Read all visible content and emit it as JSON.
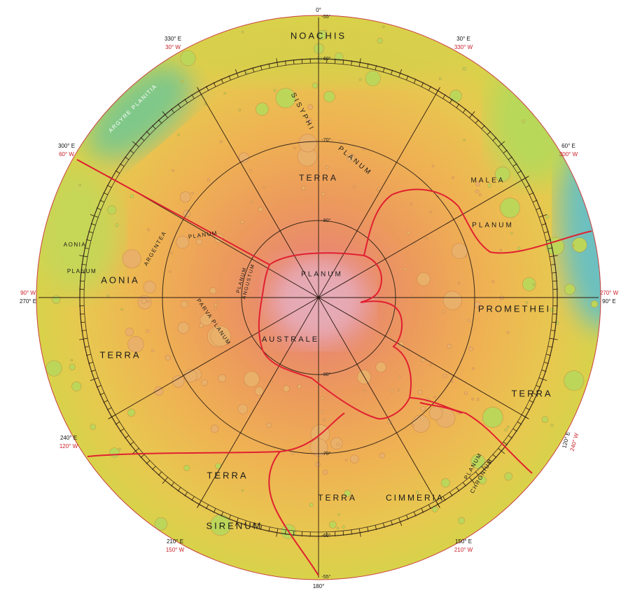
{
  "longitude_labels": [
    {
      "east": "0°"
    },
    {
      "east": "330° E",
      "west": "30° W"
    },
    {
      "east": "30° E",
      "west": "330° W"
    },
    {
      "east": "300° E",
      "west": "60° W"
    },
    {
      "east": "60° E",
      "west": "300° W"
    },
    {
      "east": "270° E",
      "west": "90° W"
    },
    {
      "east": "90° E",
      "west": "270° W"
    },
    {
      "east": "240° E",
      "west": "120° W"
    },
    {
      "east": "120° E",
      "west": "240° W"
    },
    {
      "east": "210° E",
      "west": "150° W"
    },
    {
      "east": "150° E",
      "west": "210° W"
    },
    {
      "east": "180°"
    }
  ],
  "latitude_labels": [
    "-55°",
    "-60°",
    "-70°",
    "-80°",
    "-80°",
    "-70°",
    "-60°",
    "-55°"
  ],
  "region_labels": [
    "NOACHIS",
    "SISYPHI",
    "TERRA",
    "PLANUM",
    "MALEA",
    "PLANUM",
    "ARGYRE PLANITIA",
    "AONIA",
    "PLANUM",
    "ARGENTEA",
    "PLANUM",
    "AONIA",
    "PLANUM",
    "PLANUM",
    "ANGUSTUM",
    "PARVA PLANUM",
    "AUSTRALE",
    "PROMETHEI",
    "TERRA",
    "TERRA",
    "TERRA",
    "TERRA",
    "CIMMERIA",
    "SIRENUM",
    "PLANUM",
    "CHRONIUM"
  ]
}
